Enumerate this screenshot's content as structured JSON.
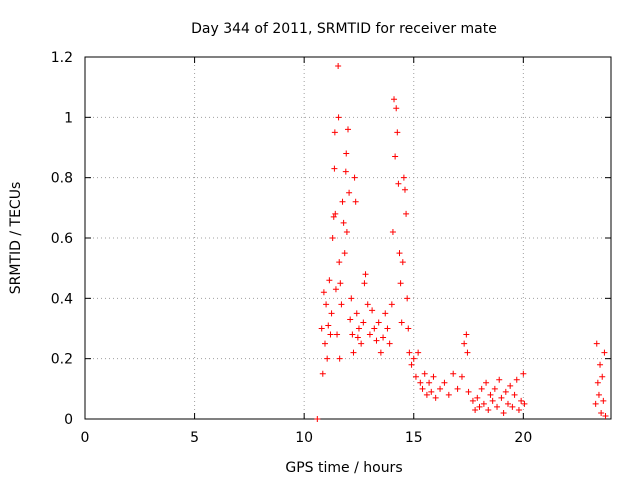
{
  "chart_data": {
    "type": "scatter",
    "title": "Day 344 of 2011, SRMTID for receiver mate",
    "xlabel": "GPS time / hours",
    "ylabel": "SRMTID / TECUs",
    "xlim": [
      0,
      24
    ],
    "ylim": [
      0,
      1.2
    ],
    "x_ticks": [
      0,
      5,
      10,
      15,
      20
    ],
    "x_tick_labels": [
      "0",
      "5",
      "10",
      "15",
      "20"
    ],
    "y_ticks": [
      0,
      0.2,
      0.4,
      0.6,
      0.8,
      1.0,
      1.2
    ],
    "y_tick_labels": [
      "0",
      "0.2",
      "0.4",
      "0.6",
      "0.8",
      "1",
      "1.2"
    ],
    "grid": true,
    "marker": "+",
    "color": "#ff0000",
    "series": [
      {
        "name": "SRMTID",
        "points": [
          [
            10.6,
            0.0
          ],
          [
            10.8,
            0.3
          ],
          [
            10.85,
            0.15
          ],
          [
            10.9,
            0.42
          ],
          [
            10.95,
            0.25
          ],
          [
            11.0,
            0.38
          ],
          [
            11.05,
            0.2
          ],
          [
            11.1,
            0.31
          ],
          [
            11.15,
            0.46
          ],
          [
            11.2,
            0.28
          ],
          [
            11.25,
            0.35
          ],
          [
            11.3,
            0.6
          ],
          [
            11.35,
            0.67
          ],
          [
            11.38,
            0.83
          ],
          [
            11.4,
            0.95
          ],
          [
            11.42,
            0.68
          ],
          [
            11.45,
            0.43
          ],
          [
            11.5,
            0.28
          ],
          [
            11.55,
            1.17
          ],
          [
            11.57,
            1.0
          ],
          [
            11.6,
            0.52
          ],
          [
            11.62,
            0.2
          ],
          [
            11.65,
            0.45
          ],
          [
            11.7,
            0.38
          ],
          [
            11.75,
            0.72
          ],
          [
            11.8,
            0.65
          ],
          [
            11.85,
            0.55
          ],
          [
            11.9,
            0.82
          ],
          [
            11.92,
            0.88
          ],
          [
            11.95,
            0.62
          ],
          [
            12.0,
            0.96
          ],
          [
            12.05,
            0.75
          ],
          [
            12.1,
            0.33
          ],
          [
            12.15,
            0.4
          ],
          [
            12.2,
            0.28
          ],
          [
            12.25,
            0.22
          ],
          [
            12.3,
            0.8
          ],
          [
            12.35,
            0.72
          ],
          [
            12.4,
            0.35
          ],
          [
            12.45,
            0.27
          ],
          [
            12.5,
            0.3
          ],
          [
            12.6,
            0.25
          ],
          [
            12.7,
            0.32
          ],
          [
            12.75,
            0.45
          ],
          [
            12.8,
            0.48
          ],
          [
            12.9,
            0.38
          ],
          [
            13.0,
            0.28
          ],
          [
            13.1,
            0.36
          ],
          [
            13.2,
            0.3
          ],
          [
            13.3,
            0.26
          ],
          [
            13.4,
            0.32
          ],
          [
            13.5,
            0.22
          ],
          [
            13.6,
            0.27
          ],
          [
            13.7,
            0.35
          ],
          [
            13.8,
            0.3
          ],
          [
            13.9,
            0.25
          ],
          [
            14.0,
            0.38
          ],
          [
            14.05,
            0.62
          ],
          [
            14.1,
            1.06
          ],
          [
            14.15,
            0.87
          ],
          [
            14.2,
            1.03
          ],
          [
            14.25,
            0.95
          ],
          [
            14.3,
            0.78
          ],
          [
            14.35,
            0.55
          ],
          [
            14.4,
            0.45
          ],
          [
            14.45,
            0.32
          ],
          [
            14.5,
            0.52
          ],
          [
            14.55,
            0.8
          ],
          [
            14.6,
            0.76
          ],
          [
            14.65,
            0.68
          ],
          [
            14.7,
            0.4
          ],
          [
            14.75,
            0.3
          ],
          [
            14.8,
            0.22
          ],
          [
            14.9,
            0.18
          ],
          [
            15.0,
            0.2
          ],
          [
            15.1,
            0.14
          ],
          [
            15.2,
            0.22
          ],
          [
            15.3,
            0.12
          ],
          [
            15.4,
            0.1
          ],
          [
            15.5,
            0.15
          ],
          [
            15.6,
            0.08
          ],
          [
            15.7,
            0.12
          ],
          [
            15.8,
            0.09
          ],
          [
            15.9,
            0.14
          ],
          [
            16.0,
            0.07
          ],
          [
            16.2,
            0.1
          ],
          [
            16.4,
            0.12
          ],
          [
            16.6,
            0.08
          ],
          [
            16.8,
            0.15
          ],
          [
            17.0,
            0.1
          ],
          [
            17.2,
            0.14
          ],
          [
            17.3,
            0.25
          ],
          [
            17.4,
            0.28
          ],
          [
            17.45,
            0.22
          ],
          [
            17.5,
            0.09
          ],
          [
            17.7,
            0.06
          ],
          [
            17.8,
            0.03
          ],
          [
            17.9,
            0.07
          ],
          [
            18.0,
            0.04
          ],
          [
            18.1,
            0.1
          ],
          [
            18.2,
            0.05
          ],
          [
            18.3,
            0.12
          ],
          [
            18.4,
            0.03
          ],
          [
            18.5,
            0.08
          ],
          [
            18.6,
            0.06
          ],
          [
            18.7,
            0.1
          ],
          [
            18.8,
            0.04
          ],
          [
            18.9,
            0.13
          ],
          [
            19.0,
            0.07
          ],
          [
            19.1,
            0.02
          ],
          [
            19.2,
            0.09
          ],
          [
            19.3,
            0.05
          ],
          [
            19.4,
            0.11
          ],
          [
            19.5,
            0.04
          ],
          [
            19.6,
            0.08
          ],
          [
            19.7,
            0.13
          ],
          [
            19.8,
            0.03
          ],
          [
            19.9,
            0.06
          ],
          [
            20.0,
            0.15
          ],
          [
            20.05,
            0.05
          ],
          [
            23.3,
            0.05
          ],
          [
            23.35,
            0.25
          ],
          [
            23.4,
            0.12
          ],
          [
            23.45,
            0.08
          ],
          [
            23.5,
            0.18
          ],
          [
            23.55,
            0.02
          ],
          [
            23.6,
            0.14
          ],
          [
            23.65,
            0.06
          ],
          [
            23.7,
            0.22
          ],
          [
            23.75,
            0.01
          ]
        ]
      }
    ]
  }
}
